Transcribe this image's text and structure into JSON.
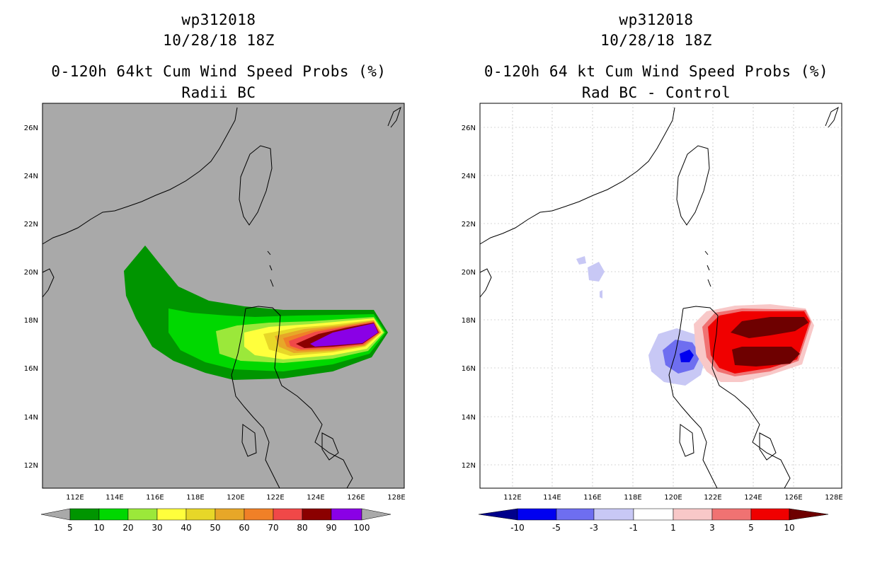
{
  "left_panel": {
    "title_line1": "wp312018",
    "title_line2": "10/28/18 18Z",
    "title_line3": "0-120h 64kt Cum Wind Speed Probs (%)",
    "title_line4": "Radii BC",
    "map_background": "#a9a9a9",
    "colorbar_labels": [
      "5",
      "10",
      "20",
      "30",
      "40",
      "50",
      "60",
      "70",
      "80",
      "90",
      "100"
    ],
    "colorbar_colors": [
      "#009500",
      "#00d800",
      "#9be83a",
      "#ffff3c",
      "#e7d728",
      "#e7a728",
      "#f08027",
      "#f04848",
      "#8b0000",
      "#8a00e6"
    ]
  },
  "right_panel": {
    "title_line1": "wp312018",
    "title_line2": "10/28/18 18Z",
    "title_line3": "0-120h 64 kt Cum Wind Speed Probs (%)",
    "title_line4": "Rad BC - Control",
    "map_background": "#ffffff",
    "colorbar_labels": [
      "-10",
      "-5",
      "-3",
      "-1",
      "1",
      "3",
      "5",
      "10"
    ],
    "colorbar_colors": [
      "#00008b",
      "#0000f0",
      "#6e6ef0",
      "#c8c8f5",
      "#ffffff",
      "#f8c8c8",
      "#f07272",
      "#f00000",
      "#6e0000"
    ]
  },
  "axes": {
    "lon_labels": [
      "112E",
      "114E",
      "116E",
      "118E",
      "120E",
      "122E",
      "124E",
      "126E",
      "128E"
    ],
    "lat_labels": [
      "26N",
      "24N",
      "22N",
      "20N",
      "18N",
      "16N",
      "14N",
      "12N"
    ]
  }
}
